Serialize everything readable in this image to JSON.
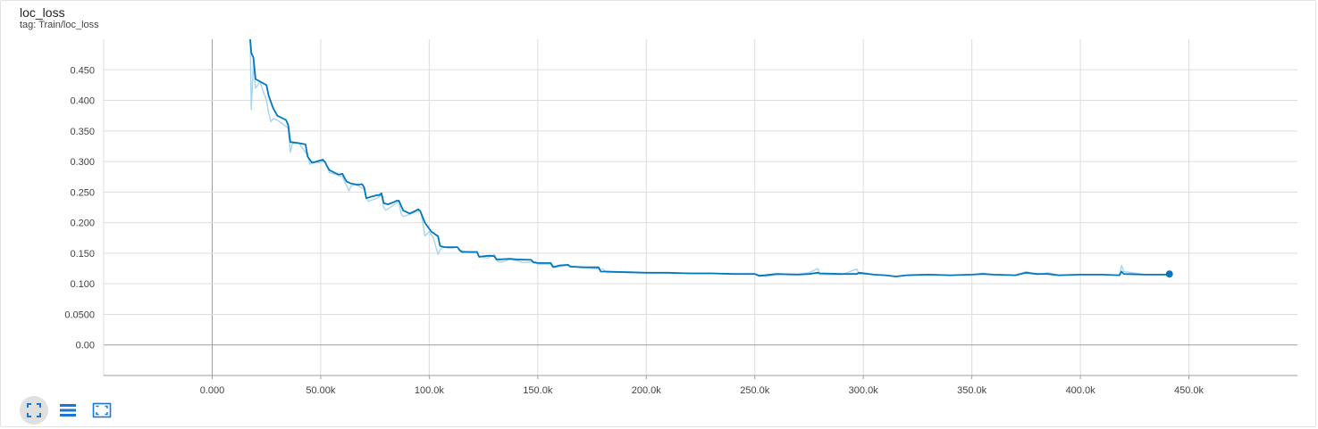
{
  "card": {
    "title": "loc_loss",
    "subtitle": "tag: Train/loc_loss"
  },
  "toolbar": {
    "items": [
      {
        "name": "fullscreen-icon",
        "active": true
      },
      {
        "name": "log-scale-icon",
        "active": false
      },
      {
        "name": "fit-domain-icon",
        "active": false
      }
    ]
  },
  "colors": {
    "smoothed": "#0277bd",
    "raw": "#a8d4ee",
    "grid": "#dddddd",
    "axis": "#9e9e9e",
    "zero_line": "#9e9e9e"
  },
  "chart_data": {
    "type": "line",
    "xlim": [
      -50000,
      500000
    ],
    "ylim": [
      -0.05,
      0.5
    ],
    "x_ticks": [
      0,
      50000,
      100000,
      150000,
      200000,
      250000,
      300000,
      350000,
      400000,
      450000
    ],
    "x_tick_labels": [
      "0.000",
      "50.00k",
      "100.0k",
      "150.0k",
      "200.0k",
      "250.0k",
      "300.0k",
      "350.0k",
      "400.0k",
      "450.0k"
    ],
    "y_ticks": [
      0,
      0.05,
      0.1,
      0.15,
      0.2,
      0.25,
      0.3,
      0.35,
      0.4,
      0.45
    ],
    "y_tick_labels": [
      "0.00",
      "0.0500",
      "0.100",
      "0.150",
      "0.200",
      "0.250",
      "0.300",
      "0.350",
      "0.400",
      "0.450"
    ],
    "grid": true,
    "series": [
      {
        "role": "raw",
        "x": [
          17500,
          18000,
          19000,
          20000,
          22000,
          25000,
          26000,
          27000,
          28000,
          30000,
          31000,
          35000,
          36000,
          37000,
          40000,
          44000,
          45000,
          46000,
          48000,
          52000,
          54000,
          56000,
          60000,
          62000,
          63000,
          64000,
          66000,
          70000,
          71000,
          72000,
          76000,
          78000,
          79000,
          80000,
          84000,
          86000,
          87000,
          88000,
          92000,
          96000,
          97000,
          98000,
          100000,
          102000,
          104000,
          105000,
          106000,
          110000,
          113000,
          114000,
          120000,
          122000,
          123000,
          127000,
          130000,
          131000,
          133000,
          137000,
          140000,
          143000,
          149000,
          150000,
          156000,
          157000,
          160000,
          164000,
          166000,
          170000,
          175000,
          180000,
          182000,
          190000,
          200000,
          210000,
          220000,
          230000,
          240000,
          250000,
          255000,
          260000,
          270000,
          275000,
          279000,
          280000,
          290000,
          297000,
          298000,
          310000,
          315000,
          320000,
          330000,
          340000,
          350000,
          355000,
          360000,
          370000,
          375000,
          380000,
          385000,
          390000,
          400000,
          410000,
          418000,
          419000,
          420000,
          430000,
          440000
        ],
        "y": [
          0.5,
          0.385,
          0.46,
          0.42,
          0.43,
          0.4,
          0.38,
          0.365,
          0.37,
          0.368,
          0.365,
          0.355,
          0.315,
          0.33,
          0.33,
          0.31,
          0.295,
          0.3,
          0.298,
          0.3,
          0.282,
          0.28,
          0.275,
          0.26,
          0.252,
          0.26,
          0.262,
          0.255,
          0.24,
          0.235,
          0.24,
          0.245,
          0.225,
          0.22,
          0.23,
          0.235,
          0.215,
          0.21,
          0.215,
          0.22,
          0.2,
          0.178,
          0.185,
          0.175,
          0.148,
          0.155,
          0.16,
          0.158,
          0.16,
          0.155,
          0.15,
          0.152,
          0.145,
          0.142,
          0.148,
          0.138,
          0.135,
          0.14,
          0.138,
          0.135,
          0.136,
          0.132,
          0.132,
          0.126,
          0.128,
          0.13,
          0.127,
          0.128,
          0.125,
          0.124,
          0.118,
          0.12,
          0.118,
          0.118,
          0.117,
          0.117,
          0.116,
          0.116,
          0.112,
          0.115,
          0.116,
          0.118,
          0.125,
          0.115,
          0.115,
          0.124,
          0.116,
          0.114,
          0.112,
          0.114,
          0.115,
          0.114,
          0.115,
          0.117,
          0.115,
          0.114,
          0.12,
          0.115,
          0.118,
          0.114,
          0.115,
          0.115,
          0.114,
          0.13,
          0.12,
          0.115,
          0.115
        ]
      },
      {
        "role": "smoothed",
        "x": [
          17500,
          18000,
          19000,
          20000,
          25000,
          26000,
          28000,
          30000,
          34000,
          35000,
          36000,
          40000,
          43000,
          44000,
          46000,
          50000,
          51000,
          52000,
          53000,
          54000,
          58000,
          59000,
          60000,
          61000,
          62000,
          64000,
          67000,
          69000,
          70000,
          71000,
          73000,
          76000,
          77000,
          78000,
          79000,
          81000,
          84000,
          85000,
          86000,
          88000,
          91000,
          94000,
          95000,
          96000,
          98000,
          100000,
          101000,
          102000,
          103000,
          104000,
          105000,
          107000,
          110000,
          113000,
          114000,
          115000,
          120000,
          122000,
          123000,
          125000,
          128000,
          130000,
          131000,
          133000,
          137000,
          140000,
          147000,
          148000,
          150000,
          155000,
          156000,
          157000,
          158000,
          160000,
          164000,
          165000,
          167000,
          170000,
          174000,
          178000,
          179000,
          182000,
          190000,
          200000,
          210000,
          220000,
          230000,
          240000,
          250000,
          252000,
          260000,
          270000,
          275000,
          279000,
          280000,
          290000,
          297000,
          298000,
          305000,
          310000,
          315000,
          320000,
          330000,
          340000,
          350000,
          355000,
          360000,
          370000,
          375000,
          380000,
          385000,
          390000,
          400000,
          410000,
          418000,
          419000,
          420000,
          430000,
          440000,
          441000
        ],
        "y": [
          0.5,
          0.478,
          0.47,
          0.435,
          0.425,
          0.408,
          0.388,
          0.375,
          0.368,
          0.36,
          0.332,
          0.33,
          0.328,
          0.308,
          0.298,
          0.302,
          0.303,
          0.299,
          0.292,
          0.286,
          0.279,
          0.279,
          0.28,
          0.273,
          0.267,
          0.264,
          0.262,
          0.263,
          0.258,
          0.24,
          0.242,
          0.245,
          0.245,
          0.248,
          0.232,
          0.23,
          0.234,
          0.236,
          0.236,
          0.22,
          0.215,
          0.22,
          0.222,
          0.218,
          0.2,
          0.19,
          0.185,
          0.183,
          0.18,
          0.178,
          0.162,
          0.16,
          0.16,
          0.16,
          0.155,
          0.152,
          0.152,
          0.152,
          0.144,
          0.145,
          0.146,
          0.145,
          0.14,
          0.14,
          0.141,
          0.14,
          0.139,
          0.135,
          0.134,
          0.134,
          0.134,
          0.128,
          0.128,
          0.13,
          0.131,
          0.128,
          0.128,
          0.127,
          0.127,
          0.127,
          0.12,
          0.12,
          0.119,
          0.118,
          0.118,
          0.117,
          0.117,
          0.116,
          0.116,
          0.113,
          0.116,
          0.115,
          0.116,
          0.118,
          0.117,
          0.116,
          0.116,
          0.118,
          0.115,
          0.114,
          0.112,
          0.114,
          0.115,
          0.114,
          0.115,
          0.116,
          0.115,
          0.114,
          0.118,
          0.116,
          0.116,
          0.114,
          0.115,
          0.115,
          0.114,
          0.12,
          0.116,
          0.115,
          0.115,
          0.116
        ]
      }
    ]
  }
}
